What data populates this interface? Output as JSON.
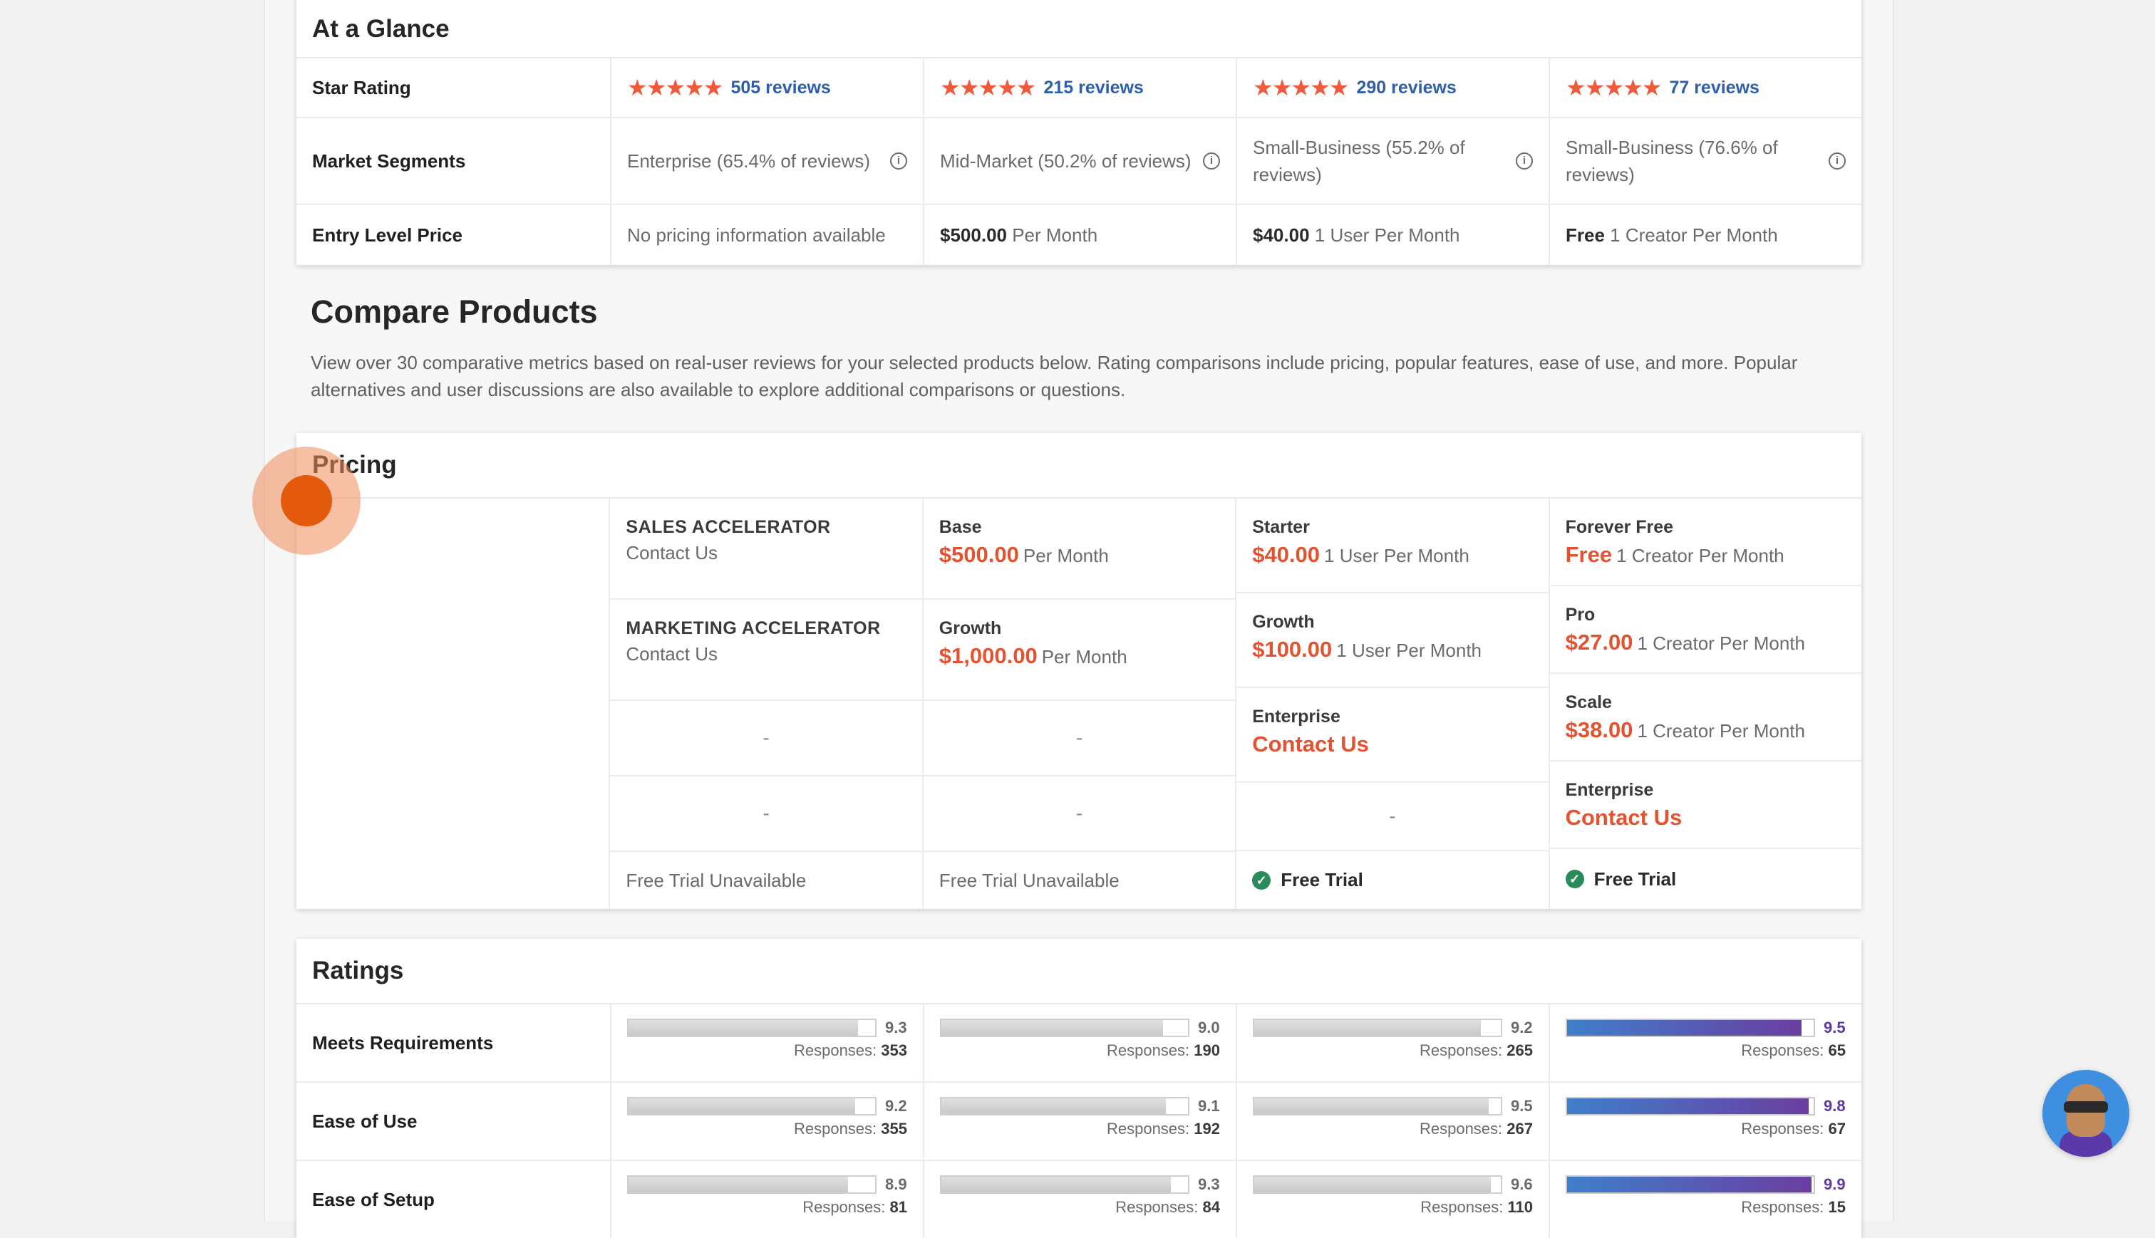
{
  "glance": {
    "title": "At a Glance",
    "rows": {
      "star_rating": {
        "label": "Star Rating",
        "stars": "★★★★★",
        "reviews": [
          "505 reviews",
          "215 reviews",
          "290 reviews",
          "77 reviews"
        ]
      },
      "market_segments": {
        "label": "Market Segments",
        "values": [
          "Enterprise (65.4% of reviews)",
          "Mid-Market (50.2% of reviews)",
          "Small-Business (55.2% of reviews)",
          "Small-Business (76.6% of reviews)"
        ]
      },
      "entry_price": {
        "label": "Entry Level Price",
        "values": [
          {
            "amount": "",
            "unit": "No pricing information available"
          },
          {
            "amount": "$500.00",
            "unit": "Per Month"
          },
          {
            "amount": "$40.00",
            "unit": "1 User Per Month"
          },
          {
            "amount": "Free",
            "unit": "1 Creator Per Month"
          }
        ]
      }
    },
    "info_icon": "i"
  },
  "compare": {
    "title": "Compare Products",
    "description": "View over 30 comparative metrics based on real-user reviews for your selected products below. Rating comparisons include pricing, popular features, ease of use, and more. Popular alternatives and user discussions are also available to explore additional comparisons or questions."
  },
  "pricing": {
    "title": "Pricing",
    "dash": "-",
    "check": "✓",
    "columns": [
      {
        "plans": [
          {
            "name": "SALES ACCELERATOR",
            "plain": "Contact Us"
          },
          {
            "name": "MARKETING ACCELERATOR",
            "plain": "Contact Us"
          }
        ],
        "trial": "Free Trial Unavailable"
      },
      {
        "plans": [
          {
            "name": "Base",
            "amount": "$500.00",
            "unit": "Per Month"
          },
          {
            "name": "Growth",
            "amount": "$1,000.00",
            "unit": "Per Month"
          }
        ],
        "trial": "Free Trial Unavailable"
      },
      {
        "plans": [
          {
            "name": "Starter",
            "amount": "$40.00",
            "unit": "1 User Per Month"
          },
          {
            "name": "Growth",
            "amount": "$100.00",
            "unit": "1 User Per Month"
          },
          {
            "name": "Enterprise",
            "contact": "Contact Us"
          }
        ],
        "trial": "Free Trial"
      },
      {
        "plans": [
          {
            "name": "Forever Free",
            "amount": "Free",
            "unit": "1 Creator Per Month"
          },
          {
            "name": "Pro",
            "amount": "$27.00",
            "unit": "1 Creator Per Month"
          },
          {
            "name": "Scale",
            "amount": "$38.00",
            "unit": "1 Creator Per Month"
          },
          {
            "name": "Enterprise",
            "contact": "Contact Us"
          }
        ],
        "trial": "Free Trial"
      }
    ]
  },
  "ratings": {
    "title": "Ratings",
    "responses_label": "Responses:",
    "max": 10,
    "rows": [
      {
        "label": "Meets Requirements",
        "scores": [
          "9.3",
          "9.0",
          "9.2",
          "9.5"
        ],
        "responses": [
          "353",
          "190",
          "265",
          "65"
        ]
      },
      {
        "label": "Ease of Use",
        "scores": [
          "9.2",
          "9.1",
          "9.5",
          "9.8"
        ],
        "responses": [
          "355",
          "192",
          "267",
          "67"
        ]
      },
      {
        "label": "Ease of Setup",
        "scores": [
          "8.9",
          "9.3",
          "9.6",
          "9.9"
        ],
        "responses": [
          "81",
          "84",
          "110",
          "15"
        ]
      }
    ],
    "highlight_column": 3
  }
}
